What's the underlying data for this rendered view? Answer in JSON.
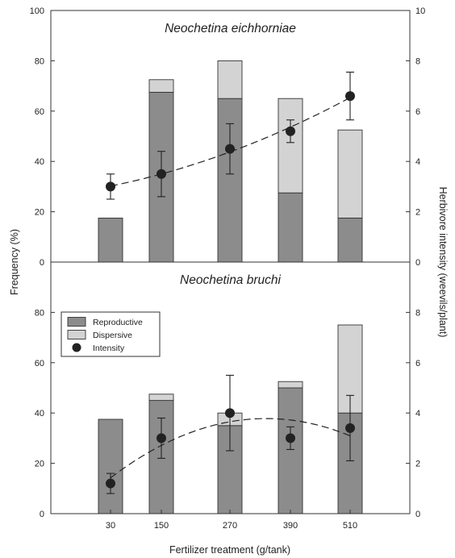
{
  "chart_data": [
    {
      "type": "bar",
      "title": "Neochetina eichhorniae",
      "categories": [
        "30",
        "150",
        "270",
        "390",
        "510"
      ],
      "stacked": true,
      "series": [
        {
          "name": "Reproductive",
          "values": [
            17.5,
            67.5,
            65,
            27.5,
            17.5
          ],
          "color": "#8c8c8c"
        },
        {
          "name": "Dispersive",
          "values": [
            0,
            5,
            15,
            37.5,
            35
          ],
          "color": "#d3d3d3"
        }
      ],
      "secondary_series": {
        "name": "Intensity",
        "values": [
          3.0,
          3.5,
          4.5,
          5.2,
          6.6
        ],
        "error": [
          0.5,
          0.9,
          1.0,
          0.45,
          0.95
        ],
        "trend": "dashed quadratic"
      },
      "ylim": [
        0,
        100
      ],
      "y_ticks": [
        "0",
        "20",
        "40",
        "60",
        "80",
        "100"
      ],
      "y2lim": [
        0,
        10
      ],
      "y2_ticks": [
        "0",
        "2",
        "4",
        "6",
        "8",
        "10"
      ]
    },
    {
      "type": "bar",
      "title": "Neochetina bruchi",
      "categories": [
        "30",
        "150",
        "270",
        "390",
        "510"
      ],
      "stacked": true,
      "series": [
        {
          "name": "Reproductive",
          "values": [
            37.5,
            45,
            35,
            50,
            40
          ],
          "color": "#8c8c8c"
        },
        {
          "name": "Dispersive",
          "values": [
            0,
            2.5,
            5,
            2.5,
            35
          ],
          "color": "#d3d3d3"
        }
      ],
      "secondary_series": {
        "name": "Intensity",
        "values": [
          1.2,
          3.0,
          4.0,
          3.0,
          3.4
        ],
        "error": [
          0.4,
          0.8,
          1.5,
          0.45,
          1.3
        ],
        "trend": "dashed quadratic"
      },
      "ylim": [
        0,
        100
      ],
      "y_ticks": [
        "0",
        "20",
        "40",
        "60",
        "80"
      ],
      "y2lim": [
        0,
        10
      ],
      "y2_ticks": [
        "0",
        "2",
        "4",
        "6",
        "8"
      ]
    }
  ],
  "axes": {
    "xlabel": "Fertilizer treatment (g/tank)",
    "ylabel": "Frequency (%)",
    "y2label": "Herbivore intensity (weevils/plant)"
  },
  "legend": {
    "placement": "top-left of lower panel",
    "items": [
      {
        "label": "Reproductive",
        "kind": "box",
        "color": "#8c8c8c"
      },
      {
        "label": "Dispersive",
        "kind": "box",
        "color": "#d3d3d3"
      },
      {
        "label": "Intensity",
        "kind": "dot",
        "color": "#222222"
      }
    ]
  }
}
